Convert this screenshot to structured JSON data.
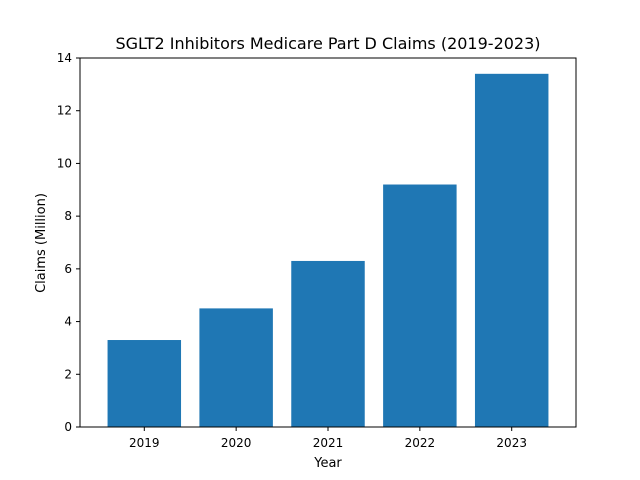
{
  "chart_data": {
    "type": "bar",
    "title": "SGLT2 Inhibitors Medicare Part D Claims (2019-2023)",
    "xlabel": "Year",
    "ylabel": "Claims (Million)",
    "categories": [
      "2019",
      "2020",
      "2021",
      "2022",
      "2023"
    ],
    "values": [
      3.3,
      4.5,
      6.3,
      9.2,
      13.4
    ],
    "ylim": [
      0,
      14
    ],
    "yticks": [
      "0",
      "2",
      "4",
      "6",
      "8",
      "10",
      "12",
      "14"
    ],
    "grid": false,
    "bar_color": "#1f77b4"
  }
}
